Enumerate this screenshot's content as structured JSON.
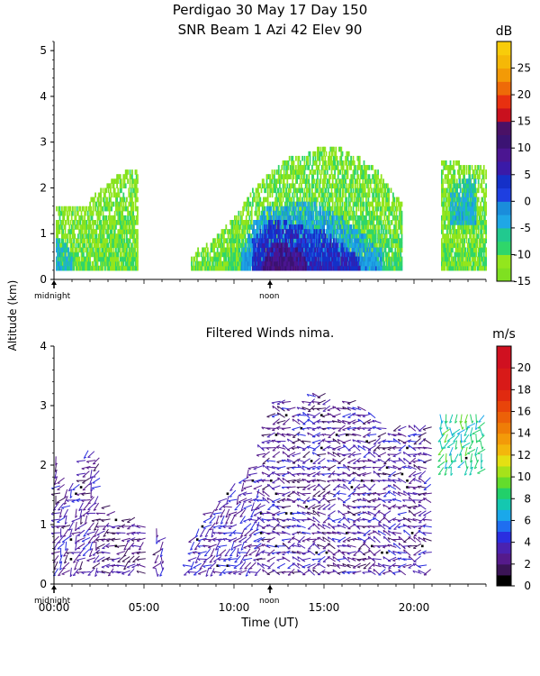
{
  "figure": {
    "title_line1": "Perdigao  30 May 17 Day 150",
    "title_line2": "SNR Beam 1 Azi  42 Elev 90",
    "shared_ylabel": "Altitude (km)",
    "xlabel": "Time (UT)"
  },
  "chart_data": [
    {
      "type": "heatmap",
      "title": "",
      "ylim": [
        0,
        5.2
      ],
      "yticks": [
        0,
        1,
        2,
        3,
        4,
        5
      ],
      "xlim": [
        0,
        24
      ],
      "x_markers": [
        {
          "x": 0,
          "label": "midnight"
        },
        {
          "x": 12,
          "label": "noon"
        }
      ],
      "grid": false,
      "colorbar": {
        "unit": "dB",
        "ticks": [
          -15,
          -10,
          -5,
          0,
          5,
          10,
          15,
          20,
          25
        ],
        "bands": [
          {
            "from": -15,
            "to": -12.5,
            "color": "#7fe021"
          },
          {
            "from": -12.5,
            "to": -10,
            "color": "#93e61d"
          },
          {
            "from": -10,
            "to": -7.5,
            "color": "#2fd66a"
          },
          {
            "from": -7.5,
            "to": -5,
            "color": "#21c98f"
          },
          {
            "from": -5,
            "to": -2.5,
            "color": "#1fa7e6"
          },
          {
            "from": -2.5,
            "to": 0,
            "color": "#1a8ddb"
          },
          {
            "from": 0,
            "to": 2.5,
            "color": "#1e3fe0"
          },
          {
            "from": 2.5,
            "to": 5,
            "color": "#1530c8"
          },
          {
            "from": 5,
            "to": 7.5,
            "color": "#3a1aa8"
          },
          {
            "from": 7.5,
            "to": 10,
            "color": "#4b1591"
          },
          {
            "from": 10,
            "to": 12.5,
            "color": "#3b1373"
          },
          {
            "from": 12.5,
            "to": 15,
            "color": "#4a1166"
          },
          {
            "from": 15,
            "to": 17.5,
            "color": "#c9101e"
          },
          {
            "from": 17.5,
            "to": 20,
            "color": "#e83010"
          },
          {
            "from": 20,
            "to": 22.5,
            "color": "#ee6a08"
          },
          {
            "from": 22.5,
            "to": 25,
            "color": "#f39a06"
          },
          {
            "from": 25,
            "to": 27.5,
            "color": "#f5b807"
          },
          {
            "from": 27.5,
            "to": 30,
            "color": "#f8cc0a"
          }
        ]
      },
      "regions": [
        {
          "x0": 0.1,
          "x1": 4.6,
          "z0": 0.2,
          "zpeak": [
            [
              0,
              1.6
            ],
            [
              1.5,
              1.5
            ],
            [
              2.5,
              1.9
            ],
            [
              4,
              2.4
            ],
            [
              4.6,
              2.3
            ]
          ],
          "snr": -12
        },
        {
          "x0": 0.1,
          "x1": 1.0,
          "z0": 0.2,
          "zpeak": [
            [
              0,
              0.9
            ],
            [
              1,
              0.6
            ]
          ],
          "snr": -6
        },
        {
          "x0": 7.6,
          "x1": 10.2,
          "z0": 0.2,
          "zpeak": [
            [
              7.6,
              0.5
            ],
            [
              9,
              0.9
            ],
            [
              10.2,
              1.4
            ]
          ],
          "snr": -12
        },
        {
          "x0": 9.8,
          "x1": 19.3,
          "z0": 0.2,
          "zpeak": [
            [
              9.8,
              1.2
            ],
            [
              11,
              1.9
            ],
            [
              12,
              2.3
            ],
            [
              13,
              2.6
            ],
            [
              14,
              2.7
            ],
            [
              15,
              2.9
            ],
            [
              16,
              2.8
            ],
            [
              17,
              2.6
            ],
            [
              18,
              2.3
            ],
            [
              19.3,
              1.6
            ]
          ],
          "snr": -11
        },
        {
          "x0": 10.4,
          "x1": 18.2,
          "z0": 0.2,
          "zpeak": [
            [
              10.4,
              0.6
            ],
            [
              11,
              1.2
            ],
            [
              12,
              1.6
            ],
            [
              13,
              1.6
            ],
            [
              14,
              1.7
            ],
            [
              15,
              1.5
            ],
            [
              16,
              1.3
            ],
            [
              17,
              1.0
            ],
            [
              18.2,
              0.6
            ]
          ],
          "snr": -4
        },
        {
          "x0": 11.0,
          "x1": 17.0,
          "z0": 0.2,
          "zpeak": [
            [
              11,
              0.8
            ],
            [
              12,
              1.3
            ],
            [
              13,
              1.2
            ],
            [
              14,
              1.1
            ],
            [
              15,
              1.0
            ],
            [
              16,
              0.7
            ],
            [
              17,
              0.4
            ]
          ],
          "snr": 3
        },
        {
          "x0": 11.6,
          "x1": 14.0,
          "z0": 0.2,
          "zpeak": [
            [
              11.6,
              0.4
            ],
            [
              12.2,
              0.8
            ],
            [
              13,
              0.7
            ],
            [
              14,
              0.5
            ]
          ],
          "snr": 9
        },
        {
          "x0": 21.5,
          "x1": 24.0,
          "z0": 0.2,
          "zpeak": [
            [
              21.5,
              2.6
            ],
            [
              22.5,
              2.5
            ],
            [
              24,
              2.5
            ]
          ],
          "snr": -12
        },
        {
          "x0": 22.0,
          "x1": 23.4,
          "z0": 1.2,
          "zpeak": [
            [
              22,
              2.0
            ],
            [
              23.4,
              2.3
            ]
          ],
          "snr": -6
        }
      ]
    },
    {
      "type": "vector-field",
      "title": "Filtered Winds nima.",
      "xlabel": "Time (UT)",
      "ylim": [
        0,
        4
      ],
      "yticks": [
        0,
        1,
        2,
        3,
        4
      ],
      "xlim": [
        0,
        24
      ],
      "xticks": [
        {
          "x": 0,
          "label": "00:00"
        },
        {
          "x": 5,
          "label": "05:00"
        },
        {
          "x": 10,
          "label": "10:00"
        },
        {
          "x": 15,
          "label": "15:00"
        },
        {
          "x": 20,
          "label": "20:00"
        }
      ],
      "x_markers": [
        {
          "x": 0,
          "label": "midnight"
        },
        {
          "x": 12,
          "label": "noon"
        }
      ],
      "grid": false,
      "colorbar": {
        "unit": "m/s",
        "ticks": [
          0,
          2,
          4,
          6,
          8,
          10,
          12,
          14,
          16,
          18,
          20
        ],
        "bands": [
          {
            "from": 0,
            "to": 1,
            "color": "#000000"
          },
          {
            "from": 1,
            "to": 2,
            "color": "#3a1456"
          },
          {
            "from": 2,
            "to": 3,
            "color": "#551a8b"
          },
          {
            "from": 3,
            "to": 4,
            "color": "#4a22b0"
          },
          {
            "from": 4,
            "to": 5,
            "color": "#2a2ee0"
          },
          {
            "from": 5,
            "to": 6,
            "color": "#1f6ef0"
          },
          {
            "from": 6,
            "to": 7,
            "color": "#1aa8ea"
          },
          {
            "from": 7,
            "to": 8,
            "color": "#14c8b0"
          },
          {
            "from": 8,
            "to": 9,
            "color": "#22d06a"
          },
          {
            "from": 9,
            "to": 10,
            "color": "#63dc2c"
          },
          {
            "from": 10,
            "to": 11,
            "color": "#a6e21a"
          },
          {
            "from": 11,
            "to": 12,
            "color": "#e4e013"
          },
          {
            "from": 12,
            "to": 13,
            "color": "#f3b70c"
          },
          {
            "from": 13,
            "to": 14,
            "color": "#f39a09"
          },
          {
            "from": 14,
            "to": 15,
            "color": "#ef7d07"
          },
          {
            "from": 15,
            "to": 16,
            "color": "#ec6108"
          },
          {
            "from": 16,
            "to": 17,
            "color": "#e8440a"
          },
          {
            "from": 17,
            "to": 18,
            "color": "#e02a10"
          },
          {
            "from": 18,
            "to": 20,
            "color": "#d81a18"
          },
          {
            "from": 20,
            "to": 22,
            "color": "#d01020"
          }
        ]
      },
      "regions": [
        {
          "x0": 0.1,
          "x1": 2.6,
          "z0": 0.2,
          "zpeak": [
            [
              0,
              2.2
            ],
            [
              0.8,
              1.6
            ],
            [
              1.6,
              2.2
            ],
            [
              2.6,
              2.3
            ]
          ],
          "dir": 225,
          "speed": 3
        },
        {
          "x0": 2.6,
          "x1": 4.9,
          "z0": 0.2,
          "zpeak": [
            [
              2.6,
              1.4
            ],
            [
              3.6,
              1.2
            ],
            [
              4.9,
              1.0
            ]
          ],
          "dir": 250,
          "speed": 2.5
        },
        {
          "x0": 5.7,
          "x1": 6.2,
          "z0": 0.2,
          "zpeak": [
            [
              5.7,
              0.9
            ],
            [
              6.2,
              0.8
            ]
          ],
          "dir": 210,
          "speed": 3
        },
        {
          "x0": 7.4,
          "x1": 11.5,
          "z0": 0.2,
          "zpeak": [
            [
              7.4,
              0.6
            ],
            [
              8.5,
              1.2
            ],
            [
              9.5,
              1.5
            ],
            [
              10.5,
              1.9
            ],
            [
              11.5,
              2.1
            ]
          ],
          "dir": 235,
          "speed": 3.5
        },
        {
          "x0": 11.5,
          "x1": 21.0,
          "z0": 0.2,
          "zpeak": [
            [
              11.5,
              2.4
            ],
            [
              12.5,
              3.2
            ],
            [
              13.5,
              2.9
            ],
            [
              14.5,
              3.3
            ],
            [
              15.5,
              3.0
            ],
            [
              16.5,
              3.1
            ],
            [
              17.5,
              2.9
            ],
            [
              18.5,
              2.6
            ],
            [
              19.5,
              2.7
            ],
            [
              21,
              2.7
            ]
          ],
          "dir": 270,
          "speed": 3
        },
        {
          "x0": 21.5,
          "x1": 24.0,
          "z0": 1.9,
          "zpeak": [
            [
              21.5,
              2.8
            ],
            [
              24,
              2.8
            ]
          ],
          "dir": 200,
          "speed": 8
        }
      ]
    }
  ]
}
